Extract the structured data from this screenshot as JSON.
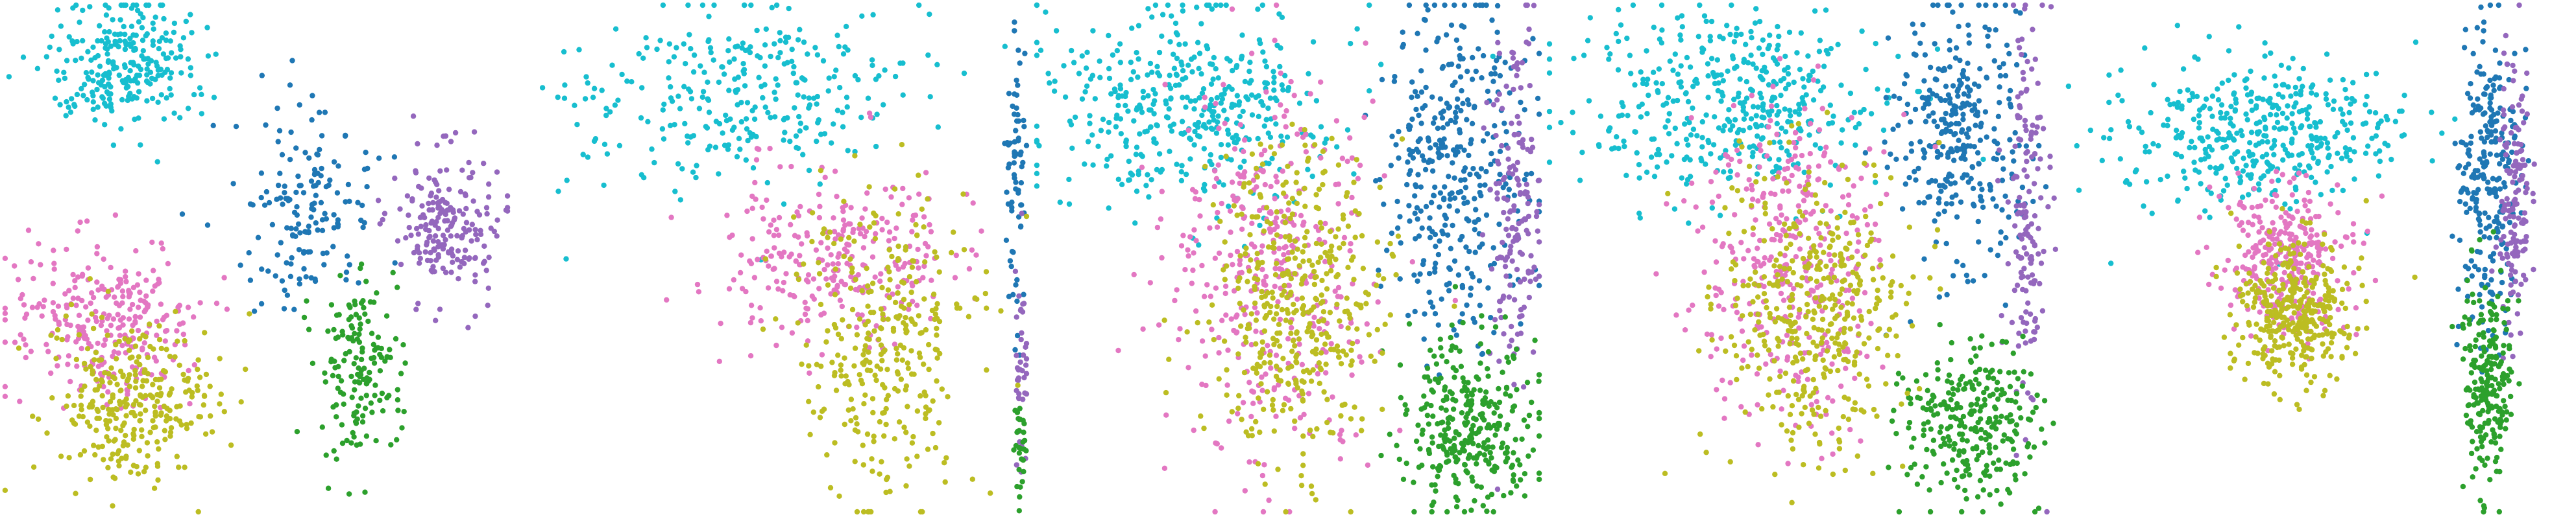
{
  "palette": {
    "cyan": "#17becf",
    "blue": "#1f77b4",
    "purple": "#9467bd",
    "green": "#2ca02c",
    "pink": "#e377c2",
    "olive": "#bcbd22"
  },
  "chart_data": [
    {
      "type": "scatter",
      "title": "",
      "xlabel": "",
      "ylabel": "",
      "axes": "off",
      "grid": false,
      "legend": "none",
      "xlim": [
        0,
        1
      ],
      "ylim": [
        0,
        1
      ],
      "series": [
        {
          "color": "cyan",
          "clusters": [
            {
              "cx": 0.25,
              "cy": 0.13,
              "rx": 0.14,
              "ry": 0.12,
              "n": 260
            }
          ]
        },
        {
          "color": "blue",
          "clusters": [
            {
              "cx": 0.6,
              "cy": 0.4,
              "rx": 0.13,
              "ry": 0.18,
              "n": 160
            }
          ]
        },
        {
          "color": "purple",
          "clusters": [
            {
              "cx": 0.87,
              "cy": 0.43,
              "rx": 0.1,
              "ry": 0.14,
              "n": 200
            }
          ]
        },
        {
          "color": "green",
          "clusters": [
            {
              "cx": 0.7,
              "cy": 0.72,
              "rx": 0.08,
              "ry": 0.18,
              "n": 160
            }
          ]
        },
        {
          "color": "pink",
          "clusters": [
            {
              "cx": 0.2,
              "cy": 0.62,
              "rx": 0.17,
              "ry": 0.16,
              "n": 280
            }
          ]
        },
        {
          "color": "olive",
          "clusters": [
            {
              "cx": 0.26,
              "cy": 0.78,
              "rx": 0.16,
              "ry": 0.16,
              "n": 300
            }
          ]
        }
      ]
    },
    {
      "type": "scatter",
      "title": "",
      "xlabel": "",
      "ylabel": "",
      "axes": "off",
      "grid": false,
      "legend": "none",
      "xlim": [
        0,
        1
      ],
      "ylim": [
        0,
        1
      ],
      "series": [
        {
          "color": "cyan",
          "clusters": [
            {
              "cx": 0.42,
              "cy": 0.18,
              "rx": 0.32,
              "ry": 0.18,
              "n": 300
            }
          ]
        },
        {
          "color": "blue",
          "clusters": [
            {
              "cx": 0.97,
              "cy": 0.35,
              "rx": 0.02,
              "ry": 0.3,
              "n": 70
            }
          ]
        },
        {
          "color": "purple",
          "clusters": [
            {
              "cx": 0.98,
              "cy": 0.72,
              "rx": 0.015,
              "ry": 0.2,
              "n": 40
            }
          ]
        },
        {
          "color": "green",
          "clusters": [
            {
              "cx": 0.98,
              "cy": 0.88,
              "rx": 0.015,
              "ry": 0.1,
              "n": 30
            }
          ]
        },
        {
          "color": "pink",
          "clusters": [
            {
              "cx": 0.62,
              "cy": 0.5,
              "rx": 0.22,
              "ry": 0.18,
              "n": 280
            }
          ]
        },
        {
          "color": "olive",
          "clusters": [
            {
              "cx": 0.72,
              "cy": 0.66,
              "rx": 0.17,
              "ry": 0.28,
              "n": 320
            }
          ]
        }
      ]
    },
    {
      "type": "scatter",
      "title": "",
      "xlabel": "",
      "ylabel": "",
      "axes": "off",
      "grid": false,
      "legend": "none",
      "xlim": [
        0,
        1
      ],
      "ylim": [
        0,
        1
      ],
      "series": [
        {
          "color": "cyan",
          "clusters": [
            {
              "cx": 0.3,
              "cy": 0.2,
              "rx": 0.28,
              "ry": 0.2,
              "n": 420
            }
          ]
        },
        {
          "color": "blue",
          "clusters": [
            {
              "cx": 0.83,
              "cy": 0.33,
              "rx": 0.14,
              "ry": 0.32,
              "n": 360
            }
          ]
        },
        {
          "color": "purple",
          "clusters": [
            {
              "cx": 0.94,
              "cy": 0.4,
              "rx": 0.05,
              "ry": 0.36,
              "n": 160
            }
          ]
        },
        {
          "color": "green",
          "clusters": [
            {
              "cx": 0.85,
              "cy": 0.82,
              "rx": 0.14,
              "ry": 0.16,
              "n": 320
            }
          ]
        },
        {
          "color": "pink",
          "clusters": [
            {
              "cx": 0.47,
              "cy": 0.52,
              "rx": 0.2,
              "ry": 0.36,
              "n": 380
            }
          ]
        },
        {
          "color": "olive",
          "clusters": [
            {
              "cx": 0.52,
              "cy": 0.58,
              "rx": 0.17,
              "ry": 0.3,
              "n": 420
            }
          ]
        }
      ]
    },
    {
      "type": "scatter",
      "title": "",
      "xlabel": "",
      "ylabel": "",
      "axes": "off",
      "grid": false,
      "legend": "none",
      "xlim": [
        0,
        1
      ],
      "ylim": [
        0,
        1
      ],
      "series": [
        {
          "color": "cyan",
          "clusters": [
            {
              "cx": 0.35,
              "cy": 0.2,
              "rx": 0.3,
              "ry": 0.18,
              "n": 420
            }
          ]
        },
        {
          "color": "blue",
          "clusters": [
            {
              "cx": 0.8,
              "cy": 0.25,
              "rx": 0.12,
              "ry": 0.25,
              "n": 320
            }
          ]
        },
        {
          "color": "purple",
          "clusters": [
            {
              "cx": 0.93,
              "cy": 0.42,
              "rx": 0.04,
              "ry": 0.36,
              "n": 150
            }
          ]
        },
        {
          "color": "green",
          "clusters": [
            {
              "cx": 0.82,
              "cy": 0.82,
              "rx": 0.13,
              "ry": 0.15,
              "n": 280
            }
          ]
        },
        {
          "color": "pink",
          "clusters": [
            {
              "cx": 0.48,
              "cy": 0.5,
              "rx": 0.18,
              "ry": 0.32,
              "n": 360
            }
          ]
        },
        {
          "color": "olive",
          "clusters": [
            {
              "cx": 0.52,
              "cy": 0.6,
              "rx": 0.17,
              "ry": 0.3,
              "n": 420
            }
          ]
        }
      ]
    },
    {
      "type": "scatter",
      "title": "",
      "xlabel": "",
      "ylabel": "",
      "axes": "off",
      "grid": false,
      "legend": "none",
      "xlim": [
        0,
        1
      ],
      "ylim": [
        0,
        1
      ],
      "series": [
        {
          "color": "cyan",
          "clusters": [
            {
              "cx": 0.37,
              "cy": 0.26,
              "rx": 0.28,
              "ry": 0.14,
              "n": 420
            }
          ]
        },
        {
          "color": "blue",
          "clusters": [
            {
              "cx": 0.83,
              "cy": 0.35,
              "rx": 0.06,
              "ry": 0.3,
              "n": 260
            }
          ]
        },
        {
          "color": "purple",
          "clusters": [
            {
              "cx": 0.88,
              "cy": 0.4,
              "rx": 0.03,
              "ry": 0.28,
              "n": 140
            }
          ]
        },
        {
          "color": "green",
          "clusters": [
            {
              "cx": 0.83,
              "cy": 0.72,
              "rx": 0.05,
              "ry": 0.2,
              "n": 220
            }
          ]
        },
        {
          "color": "pink",
          "clusters": [
            {
              "cx": 0.43,
              "cy": 0.5,
              "rx": 0.12,
              "ry": 0.14,
              "n": 300
            }
          ]
        },
        {
          "color": "olive",
          "clusters": [
            {
              "cx": 0.45,
              "cy": 0.6,
              "rx": 0.11,
              "ry": 0.14,
              "n": 360
            }
          ]
        }
      ]
    }
  ]
}
